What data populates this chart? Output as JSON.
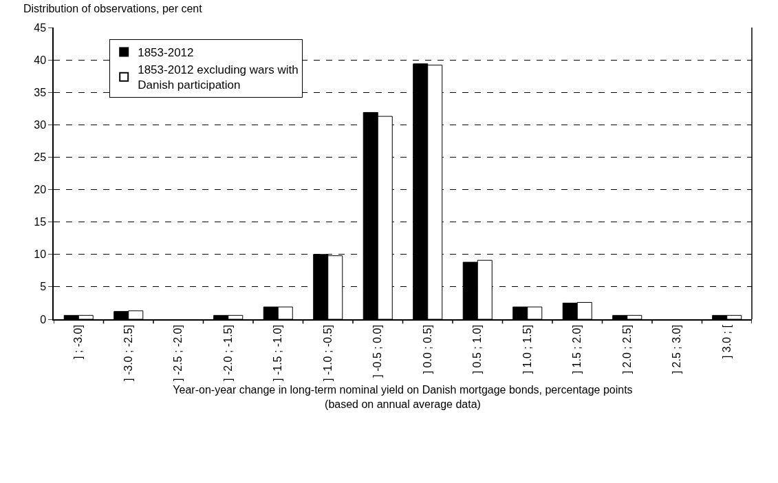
{
  "chart_data": {
    "type": "bar",
    "ylabel": "Distribution of observations, per cent",
    "xlabel": "Year-on-year change in long-term nominal yield on Danish mortgage bonds, percentage points\n(based on annual average data)",
    "categories": [
      "] ; -3.0]",
      "] -3.0 ; -2.5]",
      "] -2.5 ; -2.0]",
      "] -2.0 ; -1.5]",
      "] -1.5 ; -1.0]",
      "] -1.0 ; -0.5]",
      "] -0.5 ; 0.0]",
      "] 0.0 ; 0.5]",
      "] 0.5 ; 1.0]",
      "] 1.0 ; 1.5]",
      "] 1.5 ; 2.0]",
      "] 2.0 ; 2.5]",
      "] 2.5 ; 3.0]",
      "] 3.0 ; ["
    ],
    "series": [
      {
        "name": "1853-2012",
        "color": "#000000",
        "values": [
          0.6,
          1.2,
          0,
          0.6,
          1.9,
          10.0,
          31.9,
          39.4,
          8.8,
          1.9,
          2.5,
          0.6,
          0,
          0.6
        ]
      },
      {
        "name": "1853-2012 excluding wars with\nDanish participation",
        "color": "#ffffff",
        "values": [
          0.6,
          1.3,
          0,
          0.6,
          1.9,
          9.8,
          31.3,
          39.2,
          9.1,
          1.9,
          2.6,
          0.6,
          0,
          0.6
        ]
      }
    ],
    "ylim": [
      0,
      45
    ],
    "yticks": [
      0,
      5,
      10,
      15,
      20,
      25,
      30,
      35,
      40,
      45
    ],
    "grid": "y",
    "legend": "top left"
  }
}
